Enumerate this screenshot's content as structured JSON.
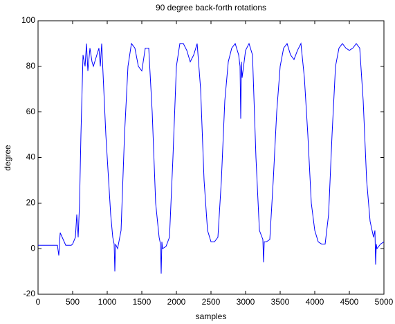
{
  "chart_data": {
    "type": "line",
    "title": "90 degree back-forth rotations",
    "xlabel": "samples",
    "ylabel": "degree",
    "x": [
      0,
      100,
      200,
      280,
      300,
      320,
      400,
      480,
      500,
      540,
      560,
      580,
      600,
      620,
      650,
      680,
      700,
      720,
      750,
      780,
      800,
      850,
      880,
      900,
      920,
      950,
      980,
      1000,
      1050,
      1080,
      1100,
      1110,
      1120,
      1150,
      1200,
      1250,
      1300,
      1350,
      1400,
      1450,
      1500,
      1550,
      1600,
      1650,
      1700,
      1750,
      1770,
      1780,
      1790,
      1800,
      1850,
      1900,
      1950,
      2000,
      2050,
      2100,
      2150,
      2200,
      2250,
      2300,
      2350,
      2400,
      2450,
      2500,
      2550,
      2600,
      2650,
      2700,
      2750,
      2800,
      2850,
      2900,
      2920,
      2930,
      2940,
      2950,
      3000,
      3050,
      3100,
      3150,
      3200,
      3250,
      3260,
      3270,
      3300,
      3350,
      3400,
      3450,
      3500,
      3550,
      3600,
      3650,
      3700,
      3750,
      3800,
      3850,
      3900,
      3950,
      4000,
      4050,
      4100,
      4150,
      4200,
      4250,
      4300,
      4350,
      4400,
      4450,
      4500,
      4550,
      4600,
      4650,
      4700,
      4750,
      4800,
      4850,
      4870,
      4880,
      4890,
      4900,
      4950,
      5000
    ],
    "values": [
      1.5,
      1.5,
      1.5,
      1.5,
      -3,
      7,
      1.5,
      1.5,
      2,
      5,
      15,
      5,
      20,
      50,
      85,
      80,
      90,
      78,
      88,
      82,
      80,
      85,
      88,
      80,
      90,
      70,
      50,
      40,
      15,
      5,
      2,
      -10,
      2,
      0,
      8,
      50,
      80,
      90,
      88,
      80,
      78,
      88,
      88,
      60,
      20,
      5,
      2,
      -11,
      3,
      0,
      1,
      5,
      40,
      80,
      90,
      90,
      87,
      82,
      85,
      90,
      70,
      30,
      8,
      3,
      3,
      5,
      30,
      65,
      82,
      88,
      90,
      85,
      80,
      57,
      82,
      75,
      87,
      90,
      85,
      40,
      8,
      4,
      -6,
      3,
      3,
      4,
      30,
      60,
      80,
      88,
      90,
      85,
      83,
      87,
      90,
      75,
      50,
      20,
      8,
      3,
      2,
      2,
      15,
      50,
      80,
      88,
      90,
      88,
      87,
      88,
      90,
      88,
      65,
      30,
      12,
      5,
      8,
      -7,
      2,
      0,
      2,
      3
    ],
    "color": "#0000ff",
    "xlim": [
      0,
      5000
    ],
    "xticks": [
      0,
      500,
      1000,
      1500,
      2000,
      2500,
      3000,
      3500,
      4000,
      4500,
      5000
    ],
    "ylim": [
      -20,
      100
    ],
    "yticks": [
      -20,
      0,
      20,
      40,
      60,
      80,
      100
    ],
    "grid": false
  }
}
